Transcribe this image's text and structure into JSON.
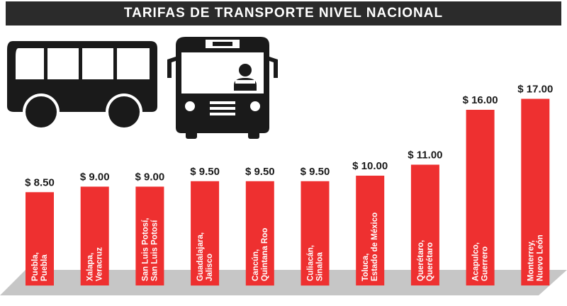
{
  "header": {
    "title": "TARIFAS DE TRANSPORTE NIVEL NACIONAL"
  },
  "colors": {
    "bar": "#ee3030",
    "floor": "#c6c6c6",
    "title_bg": "#2b2b2b",
    "icon": "#1a1a1a"
  },
  "icons": [
    "bus-side-icon",
    "bus-front-icon"
  ],
  "chart_data": {
    "type": "bar",
    "title": "TARIFAS DE TRANSPORTE NIVEL NACIONAL",
    "categories": [
      [
        "Puebla,",
        "Puebla"
      ],
      [
        "Xalapa,",
        "Veracruz"
      ],
      [
        "San Luis Potosí,",
        "San Luis Potosí"
      ],
      [
        "Guadalajara,",
        "Jalisco"
      ],
      [
        "Cancún,",
        "Quintana Roo"
      ],
      [
        "Culiacán,",
        "Sinaloa"
      ],
      [
        "Toluca,",
        "Estado de México"
      ],
      [
        "Querétaro,",
        "Querétaro"
      ],
      [
        "Acapulco,",
        "Guerrero"
      ],
      [
        "Monterrey,",
        "Nuevo León"
      ]
    ],
    "values": [
      8.5,
      9.0,
      9.0,
      9.5,
      9.5,
      9.5,
      10.0,
      11.0,
      16.0,
      17.0
    ],
    "value_labels": [
      "$ 8.50",
      "$ 9.00",
      "$ 9.00",
      "$ 9.50",
      "$ 9.50",
      "$ 9.50",
      "$ 10.00",
      "$ 11.00",
      "$ 16.00",
      "$ 17.00"
    ],
    "xlabel": "",
    "ylabel": "",
    "grid": false,
    "legend": "none"
  }
}
